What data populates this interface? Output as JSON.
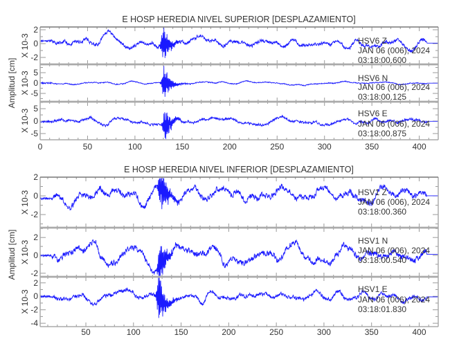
{
  "chart_data": [
    {
      "type": "line",
      "title": "E HOSP HEREDIA NIVEL SUPERIOR [DESPLAZAMIENTO]",
      "ylabel": "Amplitud [cm]",
      "xlim": [
        0,
        420
      ],
      "xticks": [
        "0",
        "50",
        "100",
        "150",
        "200",
        "250",
        "300",
        "350",
        "400"
      ],
      "xtick_values": [
        0,
        50,
        100,
        150,
        200,
        250,
        300,
        350,
        400
      ],
      "series_color": "#1a1aff",
      "panels": [
        {
          "station": "HSV6   Z",
          "date": "JAN 06 (006), 2024",
          "time": "03:18:00.600",
          "scale_label": "X 10-3",
          "ylim": [
            -3.0,
            2.4
          ],
          "yticks": [
            2,
            0,
            -2
          ],
          "ytick_labels": [
            "2",
            "0",
            "-2"
          ],
          "start_offset": 0.4,
          "noise": 0.45,
          "burst_peak": 2.9,
          "burst_time": 130,
          "seed": 11
        },
        {
          "station": "HSV6   N",
          "date": "JAN 06 (006), 2024",
          "time": "03:18:00.125",
          "scale_label": "X 10-3",
          "ylim": [
            -9,
            9
          ],
          "yticks": [
            5,
            0,
            -5
          ],
          "ytick_labels": [
            "5",
            "0",
            "-5"
          ],
          "start_offset": 0.0,
          "noise": 0.45,
          "burst_peak": 8.8,
          "burst_time": 131,
          "seed": 23
        },
        {
          "station": "HSV6   E",
          "date": "JAN 06 (006), 2024",
          "time": "03:18:00.875",
          "scale_label": "X 10-3",
          "ylim": [
            -7.5,
            7.8
          ],
          "yticks": [
            5,
            0,
            -5
          ],
          "ytick_labels": [
            "5",
            "0",
            "-5"
          ],
          "start_offset": -0.2,
          "noise": 0.9,
          "burst_peak": 7.2,
          "burst_time": 132,
          "seed": 37
        }
      ]
    },
    {
      "type": "line",
      "title": "E HOSP HEREDIA NIVEL INFERIOR [DESPLAZAMIENTO]",
      "ylabel": "Amplitud [cm]",
      "xlim": [
        2,
        420
      ],
      "xticks": [
        "50",
        "100",
        "150",
        "200",
        "250",
        "300",
        "350",
        "400"
      ],
      "xtick_values": [
        50,
        100,
        150,
        200,
        250,
        300,
        350,
        400
      ],
      "series_color": "#1a1aff",
      "panels": [
        {
          "station": "HSV1   Z",
          "date": "JAN 06 (006), 2024",
          "time": "03:18:00.360",
          "scale_label": "X 10-3",
          "ylim": [
            -3.4,
            2.0
          ],
          "yticks": [
            2,
            0,
            -2
          ],
          "ytick_labels": [
            "2",
            "0",
            "-2"
          ],
          "start_offset": -0.3,
          "noise": 0.55,
          "burst_peak": 3.2,
          "burst_time": 129,
          "seed": 41
        },
        {
          "station": "HSV1   N",
          "date": "JAN 06 (006), 2024",
          "time": "03:18:00.540",
          "scale_label": "X 10-3",
          "ylim": [
            -2.4,
            3.1
          ],
          "yticks": [
            2,
            0,
            -2
          ],
          "ytick_labels": [
            "2",
            "0",
            "-2"
          ],
          "start_offset": 0.0,
          "noise": 0.6,
          "burst_peak": 2.8,
          "burst_time": 128,
          "seed": 53
        },
        {
          "station": "HSV1   E",
          "date": "JAN 06 (006), 2024",
          "time": "03:18:01.830",
          "scale_label": "X 10-3",
          "ylim": [
            -4.5,
            2.9
          ],
          "yticks": [
            2,
            0,
            -2,
            -4
          ],
          "ytick_labels": [
            "2",
            "0",
            "-2",
            "-4"
          ],
          "start_offset": 0.0,
          "noise": 0.5,
          "burst_peak": 4.2,
          "burst_time": 127,
          "seed": 67
        }
      ]
    }
  ]
}
